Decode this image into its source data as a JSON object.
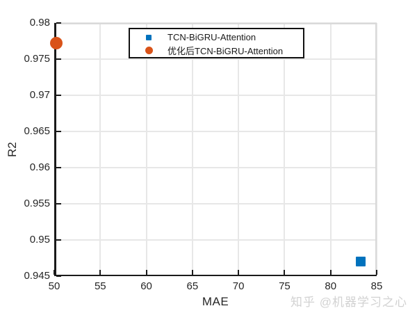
{
  "figure": {
    "watermark": "知乎 @机器学习之心"
  },
  "chart_data": {
    "type": "scatter",
    "title": "",
    "xlabel": "MAE",
    "ylabel": "R2",
    "xlim": [
      50,
      85
    ],
    "ylim": [
      0.945,
      0.98
    ],
    "xticks": [
      50,
      55,
      60,
      65,
      70,
      75,
      80,
      85
    ],
    "xtick_labels": [
      "50",
      "55",
      "60",
      "65",
      "70",
      "75",
      "80",
      "85"
    ],
    "yticks": [
      0.945,
      0.95,
      0.955,
      0.96,
      0.965,
      0.97,
      0.975,
      0.98
    ],
    "ytick_labels": [
      "0.945",
      "0.95",
      "0.955",
      "0.96",
      "0.965",
      "0.97",
      "0.975",
      "0.98"
    ],
    "grid": true,
    "legend_position": "top-center-inside",
    "series": [
      {
        "name": "TCN-BiGRU-Attention",
        "marker": "square",
        "color": "#0072BD",
        "marker_size": 14,
        "points": [
          {
            "x": 83.3,
            "y": 0.947
          }
        ]
      },
      {
        "name": "优化后TCN-BiGRU-Attention",
        "marker": "circle",
        "color": "#D95319",
        "marker_size": 18,
        "points": [
          {
            "x": 50.2,
            "y": 0.9772
          }
        ]
      }
    ]
  }
}
